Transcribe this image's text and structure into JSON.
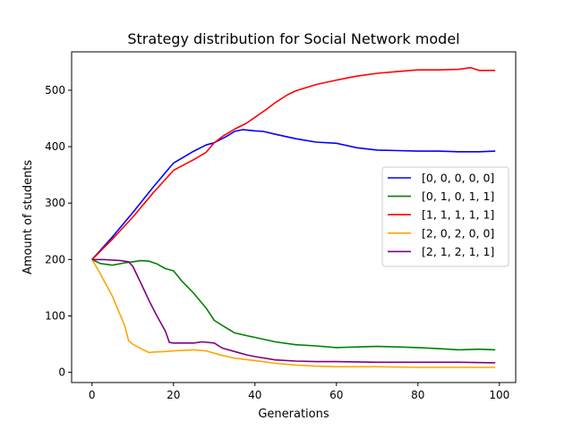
{
  "chart_data": {
    "type": "line",
    "title": "Strategy distribution for Social Network model",
    "xlabel": "Generations",
    "ylabel": "Amount of students",
    "xlim": [
      -5,
      104
    ],
    "ylim": [
      -18,
      568
    ],
    "xticks": [
      0,
      20,
      40,
      60,
      80,
      100
    ],
    "yticks": [
      0,
      100,
      200,
      300,
      400,
      500
    ],
    "grid": false,
    "legend_position": "center-right",
    "series": [
      {
        "name": "[0, 0, 0, 0, 0]",
        "color": "#0000ff",
        "x": [
          0,
          5,
          10,
          15,
          20,
          25,
          28,
          30,
          33,
          35,
          37,
          40,
          42,
          45,
          50,
          55,
          60,
          65,
          70,
          75,
          80,
          85,
          90,
          95,
          99
        ],
        "y": [
          200,
          240,
          283,
          328,
          371,
          392,
          403,
          407,
          418,
          427,
          430,
          428,
          427,
          422,
          414,
          408,
          406,
          398,
          394,
          393,
          392,
          392,
          391,
          391,
          392
        ]
      },
      {
        "name": "[0, 1, 0, 1, 1]",
        "color": "#008000",
        "x": [
          0,
          2,
          5,
          8,
          10,
          12,
          14,
          16,
          18,
          20,
          22,
          25,
          28,
          30,
          32,
          35,
          38,
          40,
          45,
          50,
          55,
          60,
          65,
          70,
          75,
          80,
          85,
          90,
          95,
          99
        ],
        "y": [
          200,
          193,
          190,
          194,
          196,
          198,
          197,
          192,
          184,
          180,
          162,
          140,
          114,
          92,
          83,
          70,
          65,
          62,
          54,
          49,
          47,
          44,
          45,
          46,
          45,
          44,
          42,
          40,
          41,
          40
        ]
      },
      {
        "name": "[1, 1, 1, 1, 1]",
        "color": "#ff0000",
        "x": [
          0,
          5,
          10,
          15,
          20,
          25,
          28,
          30,
          32,
          35,
          38,
          40,
          43,
          45,
          48,
          50,
          55,
          60,
          65,
          70,
          75,
          80,
          85,
          90,
          93,
          95,
          99
        ],
        "y": [
          200,
          236,
          275,
          318,
          358,
          377,
          390,
          407,
          418,
          431,
          442,
          452,
          467,
          478,
          492,
          499,
          510,
          518,
          525,
          530,
          533,
          536,
          536,
          537,
          540,
          535,
          535
        ]
      },
      {
        "name": "[2, 0, 2, 0, 0]",
        "color": "#ffa500",
        "x": [
          0,
          2,
          5,
          8,
          9,
          10,
          12,
          14,
          15,
          18,
          20,
          25,
          28,
          30,
          32,
          35,
          40,
          45,
          50,
          55,
          60,
          70,
          80,
          90,
          99
        ],
        "y": [
          200,
          175,
          135,
          83,
          56,
          50,
          42,
          35,
          36,
          37,
          38,
          40,
          38,
          34,
          30,
          25,
          21,
          16,
          13,
          11,
          10,
          10,
          9,
          9,
          9
        ]
      },
      {
        "name": "[2, 1, 2, 1, 1]",
        "color": "#800080",
        "x": [
          0,
          3,
          5,
          7,
          9,
          10,
          12,
          14,
          16,
          18,
          19,
          20,
          22,
          25,
          27,
          30,
          32,
          35,
          38,
          40,
          45,
          50,
          55,
          60,
          70,
          80,
          90,
          99
        ],
        "y": [
          200,
          200,
          199,
          198,
          196,
          188,
          158,
          127,
          99,
          73,
          53,
          52,
          52,
          52,
          54,
          52,
          43,
          37,
          31,
          28,
          22,
          20,
          19,
          19,
          18,
          18,
          18,
          17
        ]
      }
    ]
  }
}
